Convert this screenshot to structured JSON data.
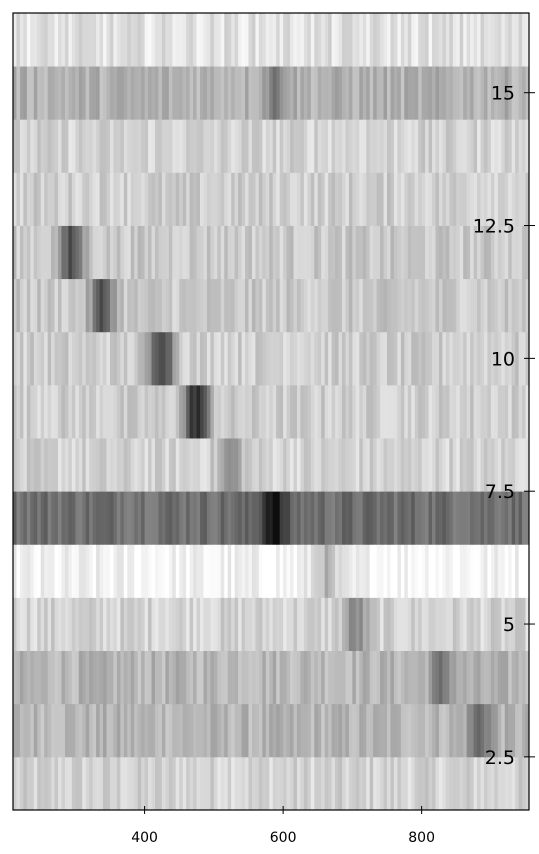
{
  "chart_data": {
    "type": "heatmap",
    "title": "",
    "xlabel": "",
    "ylabel": "",
    "xlim": [
      210,
      955
    ],
    "ylim": [
      1.5,
      16.5
    ],
    "x_ticks": [
      400,
      600,
      800
    ],
    "x_tick_labels": [
      "400",
      "600",
      "800"
    ],
    "y_ticks": [
      2.5,
      5,
      7.5,
      10,
      12.5,
      15
    ],
    "y_tick_labels": [
      "2.5",
      "5",
      "7.5",
      "10",
      "12.5",
      "15"
    ],
    "colormap": "grayscale (white = low, black = high)",
    "rows": [
      {
        "y": 2,
        "base": 0.18,
        "peak_x": null,
        "peak_value": null
      },
      {
        "y": 3,
        "base": 0.3,
        "peak_x": 885,
        "peak_value": 0.62
      },
      {
        "y": 4,
        "base": 0.3,
        "peak_x": 830,
        "peak_value": 0.55
      },
      {
        "y": 5,
        "base": 0.18,
        "peak_x": 705,
        "peak_value": 0.48
      },
      {
        "y": 6,
        "base": 0.04,
        "peak_x": 660,
        "peak_value": 0.3
      },
      {
        "y": 7,
        "base": 0.6,
        "peak_x": 585,
        "peak_value": 1.0
      },
      {
        "y": 8,
        "base": 0.18,
        "peak_x": 525,
        "peak_value": 0.45
      },
      {
        "y": 9,
        "base": 0.2,
        "peak_x": 475,
        "peak_value": 0.88
      },
      {
        "y": 10,
        "base": 0.2,
        "peak_x": 425,
        "peak_value": 0.82
      },
      {
        "y": 11,
        "base": 0.22,
        "peak_x": 340,
        "peak_value": 0.7
      },
      {
        "y": 12,
        "base": 0.22,
        "peak_x": 295,
        "peak_value": 0.7
      },
      {
        "y": 13,
        "base": 0.2,
        "peak_x": null,
        "peak_value": null
      },
      {
        "y": 14,
        "base": 0.18,
        "peak_x": null,
        "peak_value": null
      },
      {
        "y": 15,
        "base": 0.32,
        "peak_x": 590,
        "peak_value": 0.55
      },
      {
        "y": 16,
        "base": 0.12,
        "peak_x": null,
        "peak_value": null
      }
    ]
  }
}
